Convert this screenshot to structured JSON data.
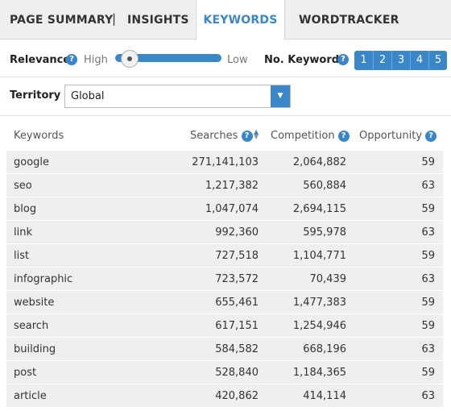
{
  "tabs": [
    {
      "label": "PAGE SUMMARY"
    },
    {
      "label": "INSIGHTS"
    },
    {
      "label": "KEYWORDS"
    },
    {
      "label": "WORDTRACKER"
    }
  ],
  "tab_separator": "|",
  "active_tab": "KEYWORDS",
  "relevance": {
    "label": "Relevance",
    "help": "?",
    "high_label": "High",
    "low_label": "Low",
    "level": 0.1
  },
  "num_keywords": {
    "label": "No. Keywords",
    "help": "?",
    "pages": [
      "1",
      "2",
      "3",
      "4",
      "5"
    ]
  },
  "territory": {
    "label": "Territory",
    "value": "Global",
    "arrow": "▼"
  },
  "table": {
    "headers": {
      "keywords": "Keywords",
      "searches": "Searches",
      "competition": "Competition",
      "opportunity": "Opportunity"
    },
    "help": "?",
    "sort_up": "▲",
    "sort_down": "▼",
    "rows": [
      {
        "keyword": "google",
        "searches": "271,141,103",
        "competition": "2,064,882",
        "opportunity": "59"
      },
      {
        "keyword": "seo",
        "searches": "1,217,382",
        "competition": "560,884",
        "opportunity": "63"
      },
      {
        "keyword": "blog",
        "searches": "1,047,074",
        "competition": "2,694,115",
        "opportunity": "59"
      },
      {
        "keyword": "link",
        "searches": "992,360",
        "competition": "595,978",
        "opportunity": "63"
      },
      {
        "keyword": "list",
        "searches": "727,518",
        "competition": "1,104,771",
        "opportunity": "59"
      },
      {
        "keyword": "infographic",
        "searches": "723,572",
        "competition": "70,439",
        "opportunity": "63"
      },
      {
        "keyword": "website",
        "searches": "655,461",
        "competition": "1,477,383",
        "opportunity": "59"
      },
      {
        "keyword": "search",
        "searches": "617,151",
        "competition": "1,254,946",
        "opportunity": "59"
      },
      {
        "keyword": "building",
        "searches": "584,582",
        "competition": "668,196",
        "opportunity": "63"
      },
      {
        "keyword": "post",
        "searches": "528,840",
        "competition": "1,184,365",
        "opportunity": "59"
      },
      {
        "keyword": "article",
        "searches": "420,862",
        "competition": "414,114",
        "opportunity": "63"
      }
    ]
  },
  "colors": {
    "accent": "#3a86c8",
    "tab_bar": "#efefef",
    "row_bg": "#efefef"
  }
}
